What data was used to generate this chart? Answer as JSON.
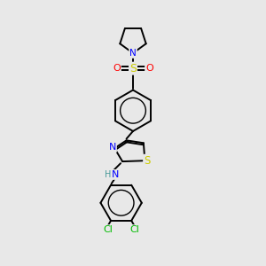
{
  "bg_color": "#e8e8e8",
  "bond_color": "#000000",
  "atom_colors": {
    "N": "#0000ff",
    "S_thio": "#cccc00",
    "S_sulfonyl": "#cccc00",
    "O": "#ff0000",
    "Cl": "#00bb00",
    "H": "#4a9a9a"
  },
  "figsize": [
    3.0,
    3.0
  ],
  "dpi": 100,
  "lw": 1.4,
  "fs": 7.5
}
